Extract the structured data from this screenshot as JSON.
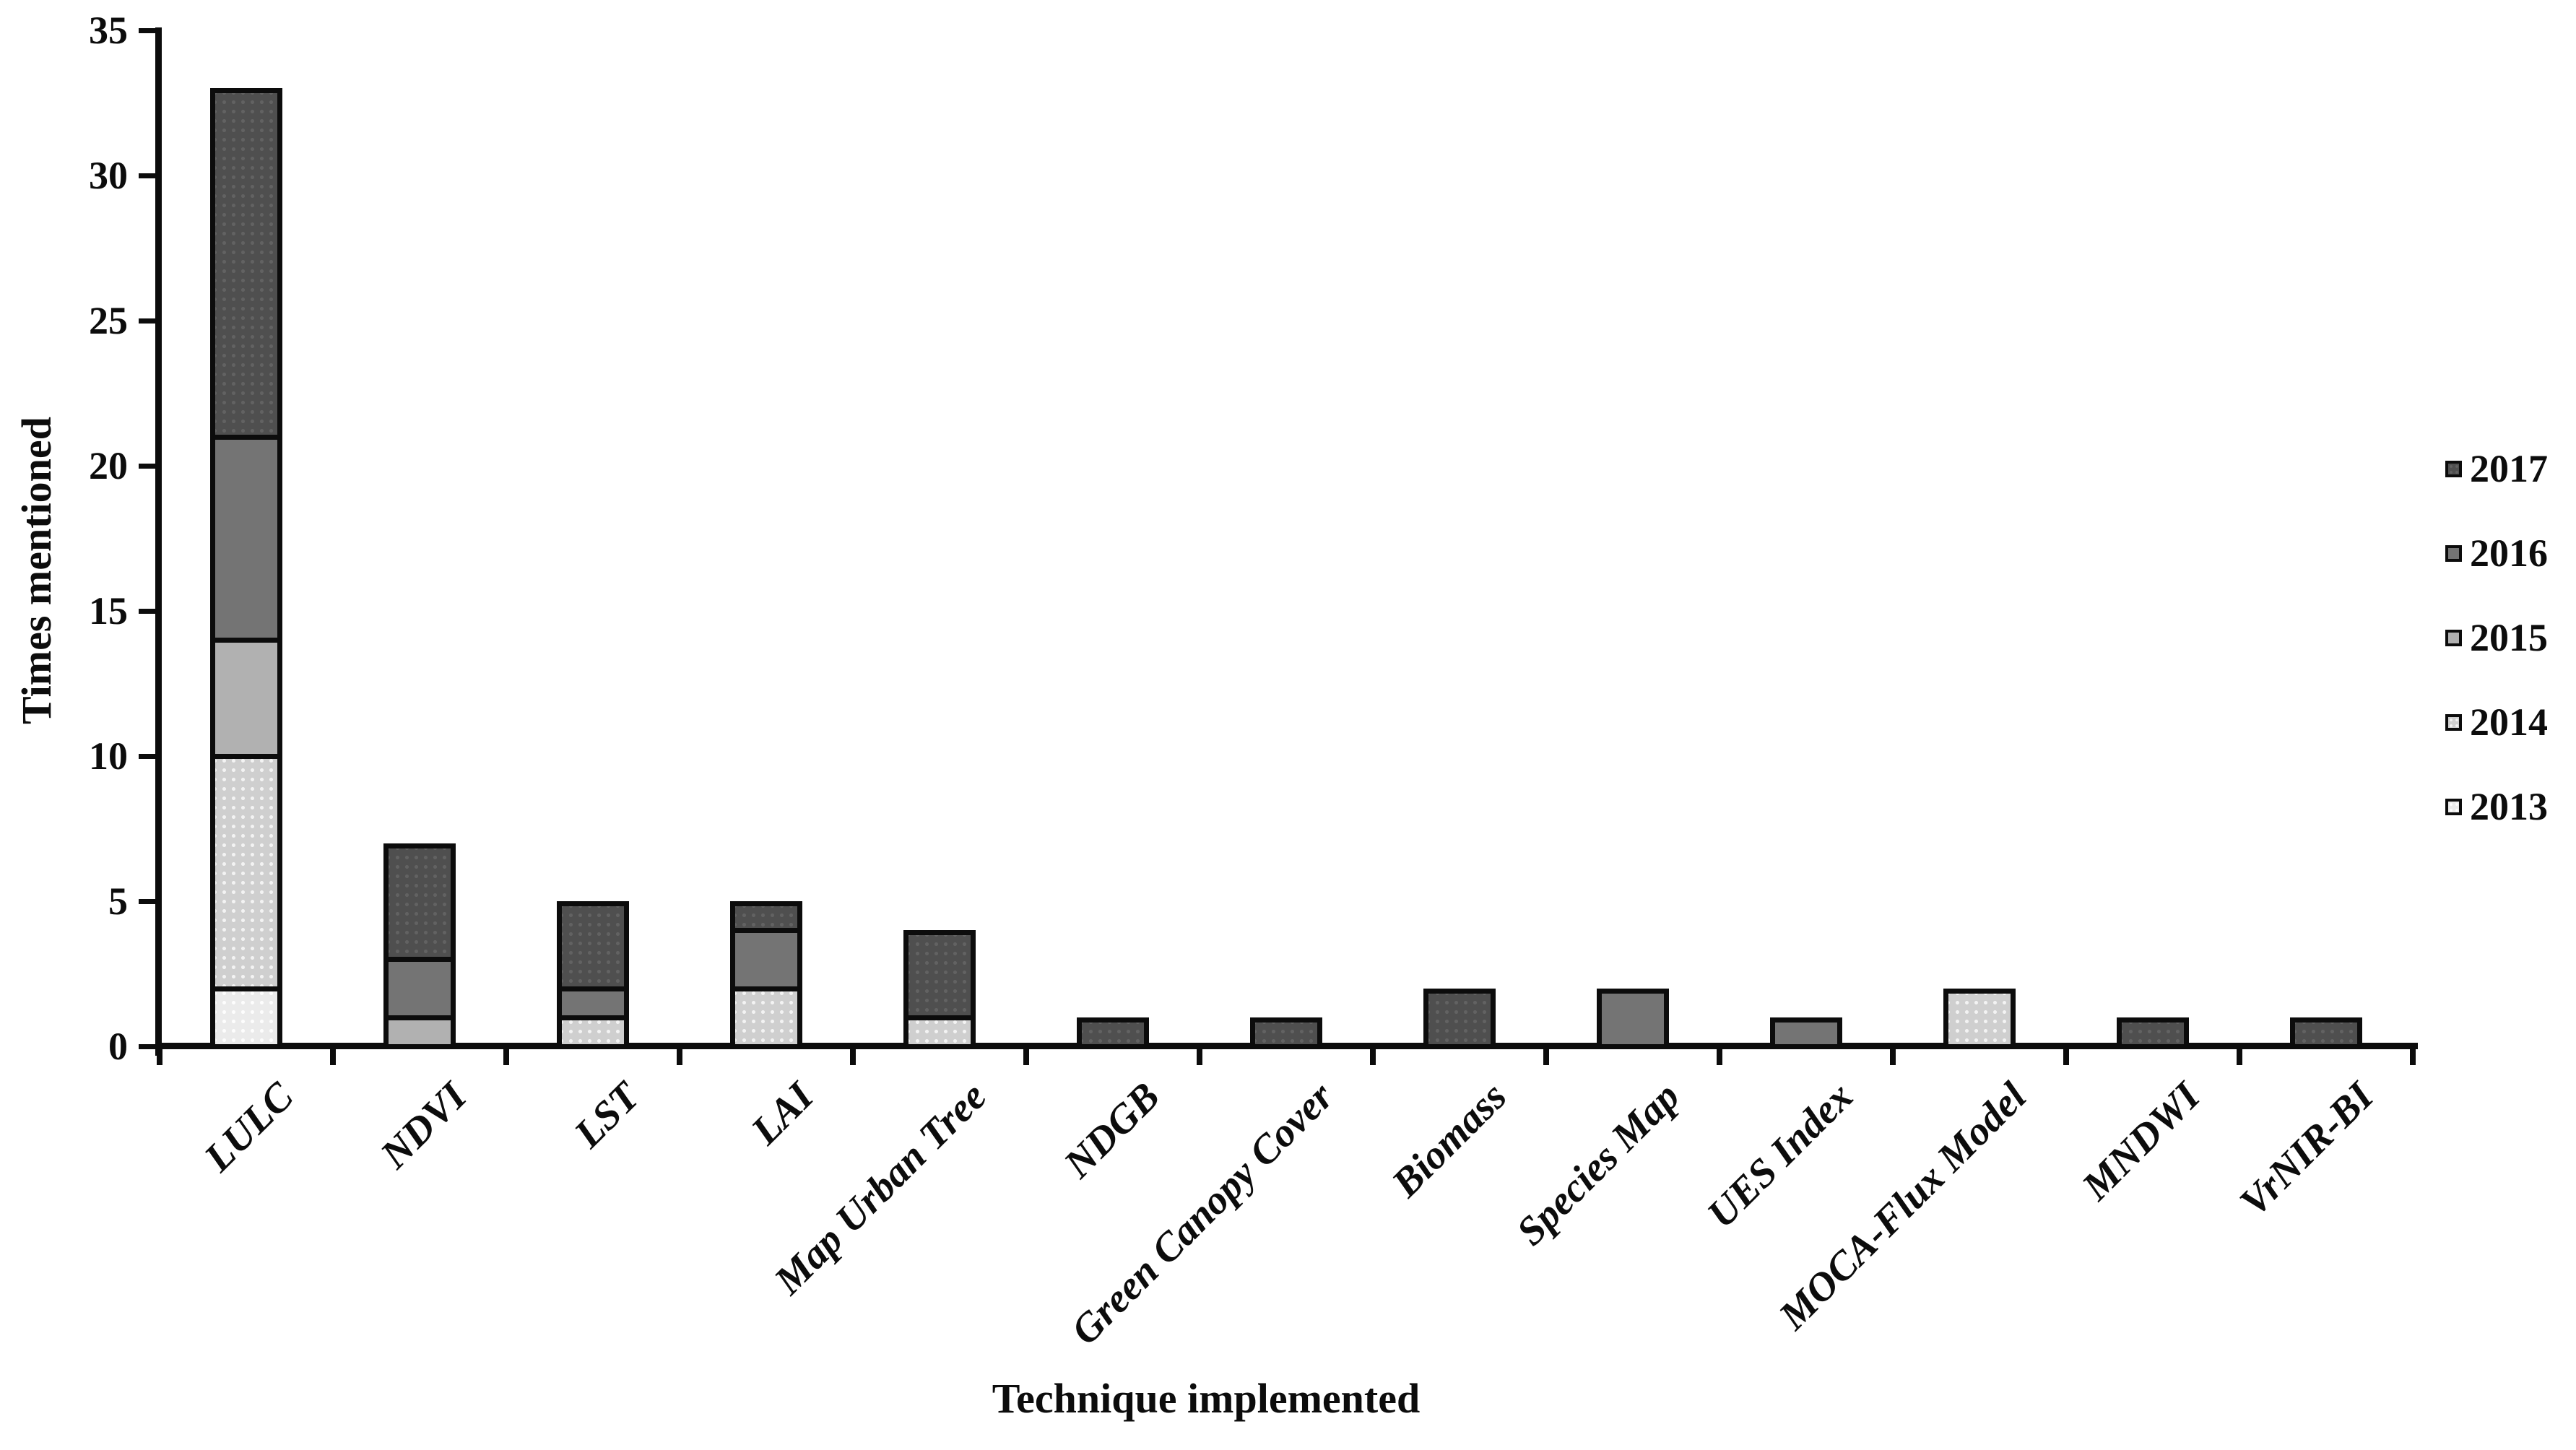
{
  "chart_data": {
    "type": "bar",
    "stacked": true,
    "title": "",
    "xlabel": "Technique implemented",
    "ylabel": "Times mentioned",
    "ylim": [
      0,
      35
    ],
    "yticks": [
      0,
      5,
      10,
      15,
      20,
      25,
      30,
      35
    ],
    "grid": false,
    "legend_position": "right",
    "legend_order": [
      "2017",
      "2016",
      "2015",
      "2014",
      "2013"
    ],
    "categories": [
      "LULC",
      "NDVI",
      "LST",
      "LAI",
      "Map Urban Tree",
      "NDGB",
      "Green Canopy Cover",
      "Biomass",
      "Species Map",
      "UES Index",
      "MOCA-Flux Model",
      "MNDWI",
      "VrNIR-BI"
    ],
    "series": [
      {
        "name": "2013",
        "color": "#ebebeb",
        "pattern": "dots",
        "pattern_color": "#fdfdfd",
        "values": [
          2,
          0,
          0,
          0,
          0,
          0,
          0,
          0,
          0,
          0,
          0,
          0,
          0
        ]
      },
      {
        "name": "2014",
        "color": "#cfcfcf",
        "pattern": "dots",
        "pattern_color": "#f3f3f3",
        "values": [
          8,
          0,
          1,
          2,
          1,
          0,
          0,
          0,
          0,
          0,
          2,
          0,
          0
        ]
      },
      {
        "name": "2015",
        "color": "#b1b1b1",
        "pattern": "solid",
        "pattern_color": "",
        "values": [
          4,
          1,
          0,
          0,
          0,
          0,
          0,
          0,
          0,
          0,
          0,
          0,
          0
        ]
      },
      {
        "name": "2016",
        "color": "#747474",
        "pattern": "solid",
        "pattern_color": "",
        "values": [
          7,
          2,
          1,
          2,
          0,
          0,
          0,
          0,
          2,
          1,
          0,
          0,
          0
        ]
      },
      {
        "name": "2017",
        "color": "#4f4f4f",
        "pattern": "dots",
        "pattern_color": "#626262",
        "values": [
          12,
          4,
          3,
          1,
          3,
          1,
          1,
          2,
          0,
          0,
          0,
          1,
          1
        ]
      }
    ],
    "totals": {
      "LULC": 33,
      "NDVI": 7,
      "LST": 5,
      "LAI": 5,
      "Map Urban Tree": 4,
      "NDGB": 1,
      "Green Canopy Cover": 1,
      "Biomass": 2,
      "Species Map": 2,
      "UES Index": 1,
      "MOCA-Flux Model": 2,
      "MNDWI": 1,
      "VrNIR-BI": 1
    }
  }
}
